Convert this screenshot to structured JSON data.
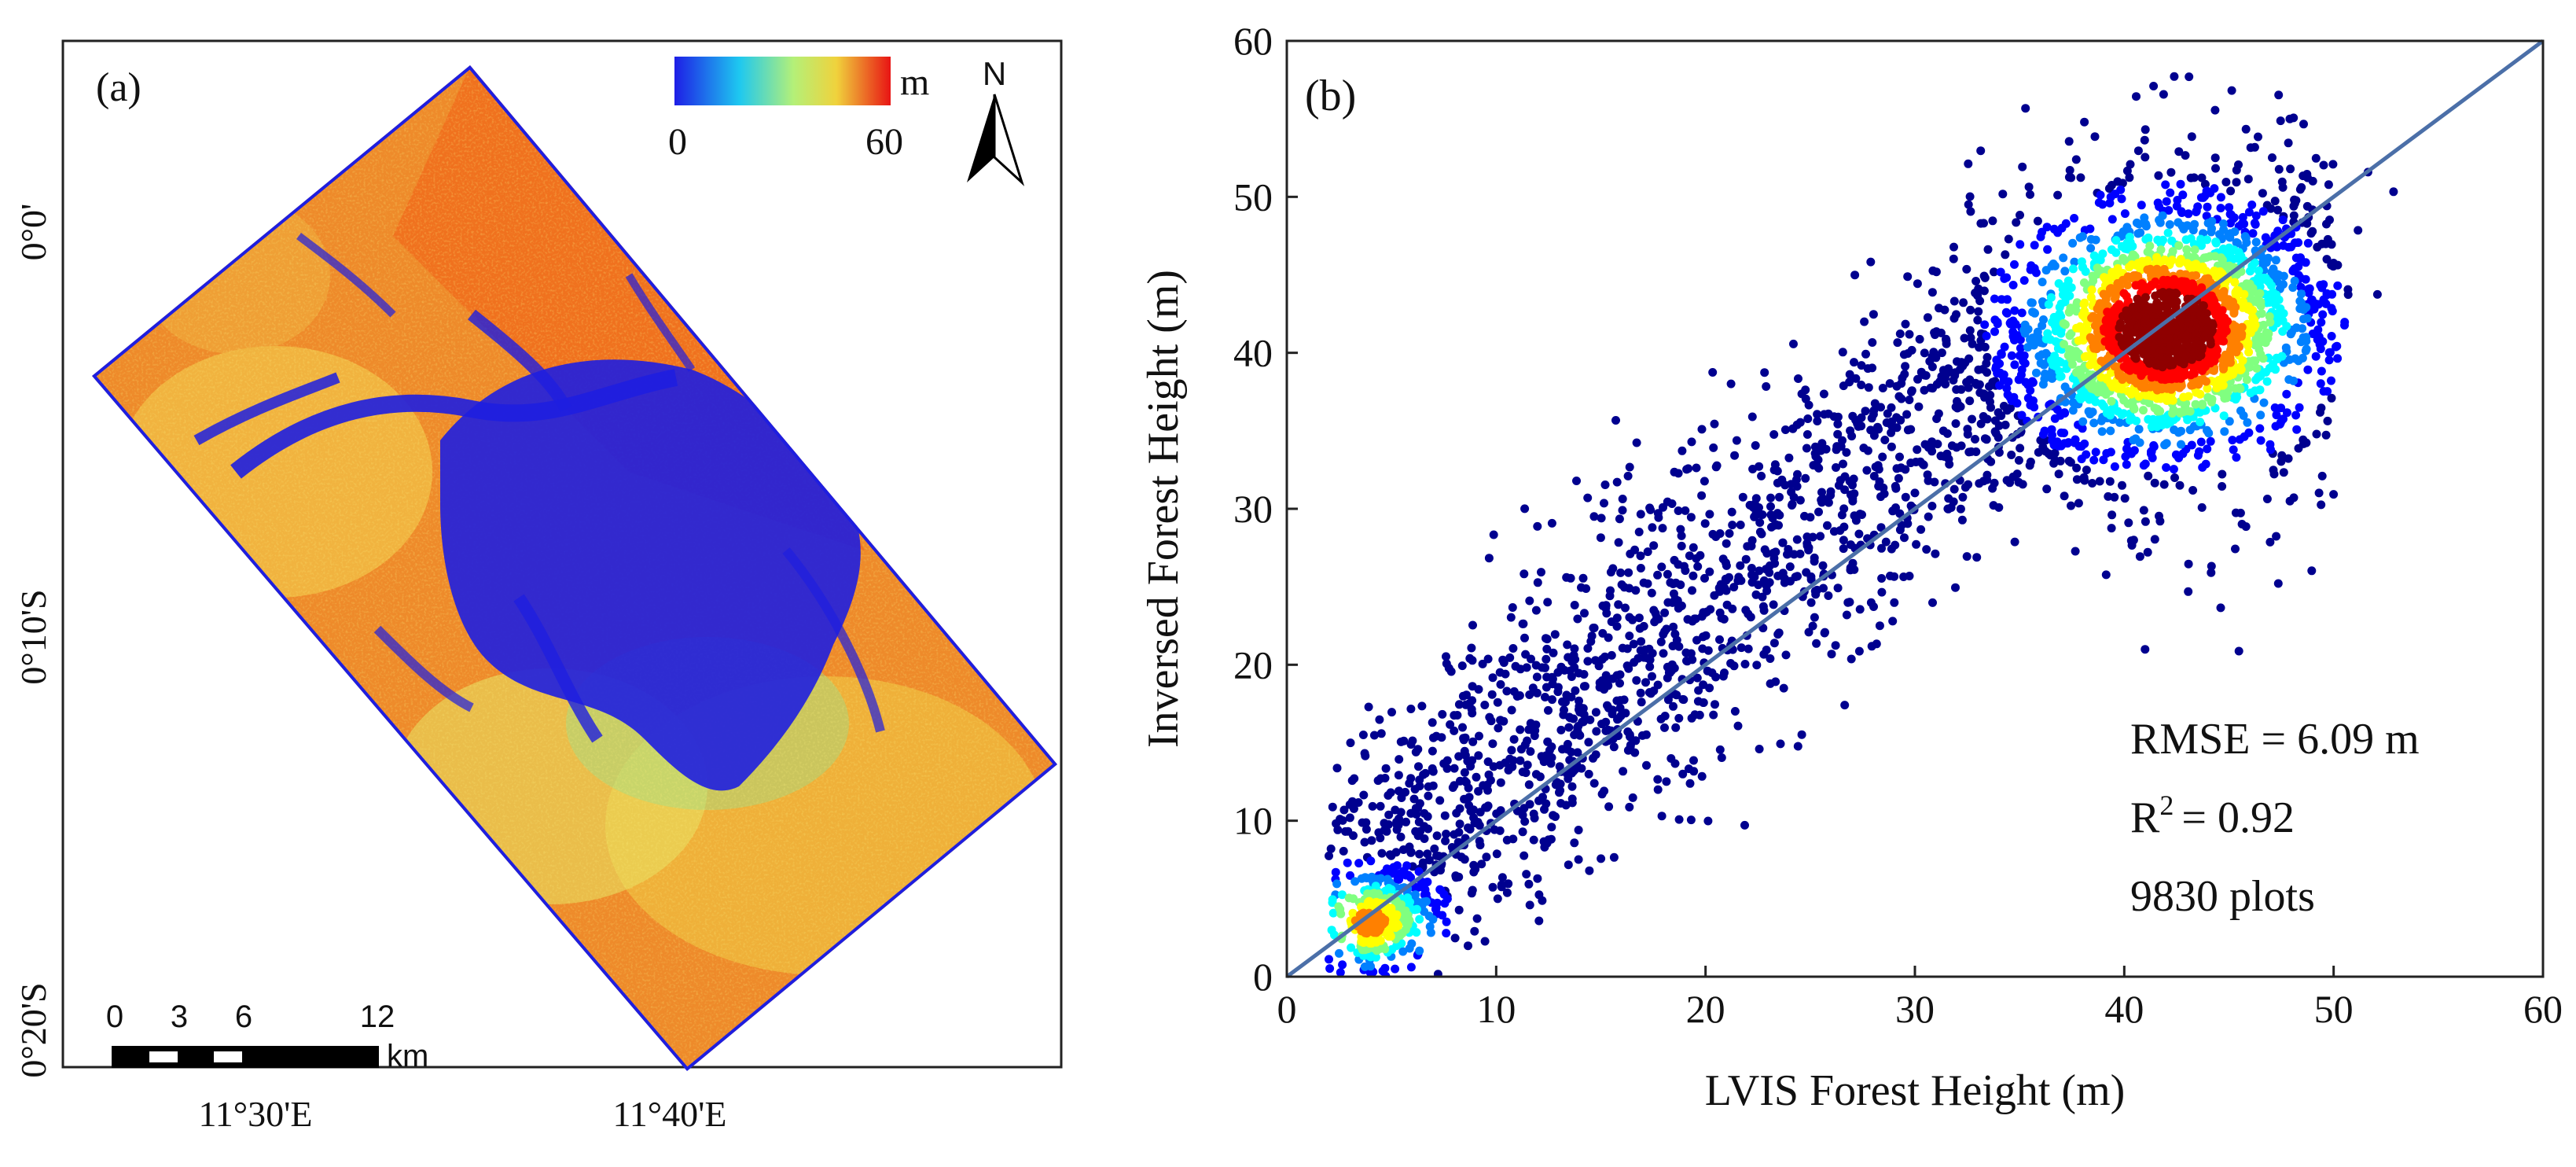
{
  "panel_a": {
    "label": "(a)",
    "colorbar": {
      "unit": "m",
      "min_label": "0",
      "max_label": "60"
    },
    "north_label": "N",
    "lat_labels": [
      "0°0'",
      "0°10'S",
      "0°20'S"
    ],
    "lon_labels": [
      "11°30'E",
      "11°40'E"
    ],
    "scalebar": {
      "ticks": [
        "0",
        "3",
        "6",
        "12"
      ],
      "unit": "km"
    }
  },
  "chart_data": {
    "type": "scatter",
    "label": "(b)",
    "xlabel": "LVIS Forest Height (m)",
    "ylabel": "Inversed Forest Height (m)",
    "xlim": [
      0,
      60
    ],
    "ylim": [
      0,
      60
    ],
    "xticks": [
      0,
      10,
      20,
      30,
      40,
      50,
      60
    ],
    "yticks": [
      0,
      10,
      20,
      30,
      40,
      50,
      60
    ],
    "one_to_one_line": {
      "from": [
        0,
        0
      ],
      "to": [
        60,
        60
      ]
    },
    "density_clusters": [
      {
        "name": "main",
        "center": [
          42,
          41.5
        ],
        "spread": [
          3.2,
          3.5
        ]
      },
      {
        "name": "low",
        "center": [
          4,
          3.5
        ],
        "spread": [
          1.5,
          1.5
        ]
      }
    ],
    "stats": {
      "rmse": "RMSE = 6.09 m",
      "r2_prefix": "R",
      "r2_sup": "2",
      "r2_value": "= 0.92",
      "n": "9830 plots"
    }
  },
  "colors": {
    "scatter_ramp": [
      "#00008f",
      "#0000ff",
      "#0080ff",
      "#00ffff",
      "#80ff80",
      "#ffff00",
      "#ff8000",
      "#ff0000",
      "#8f0000"
    ],
    "map_ramp": [
      "#1428e6",
      "#2ad7e6",
      "#a8f08a",
      "#f0e040",
      "#f07820",
      "#e81010"
    ],
    "line": "#4b6fa8"
  }
}
